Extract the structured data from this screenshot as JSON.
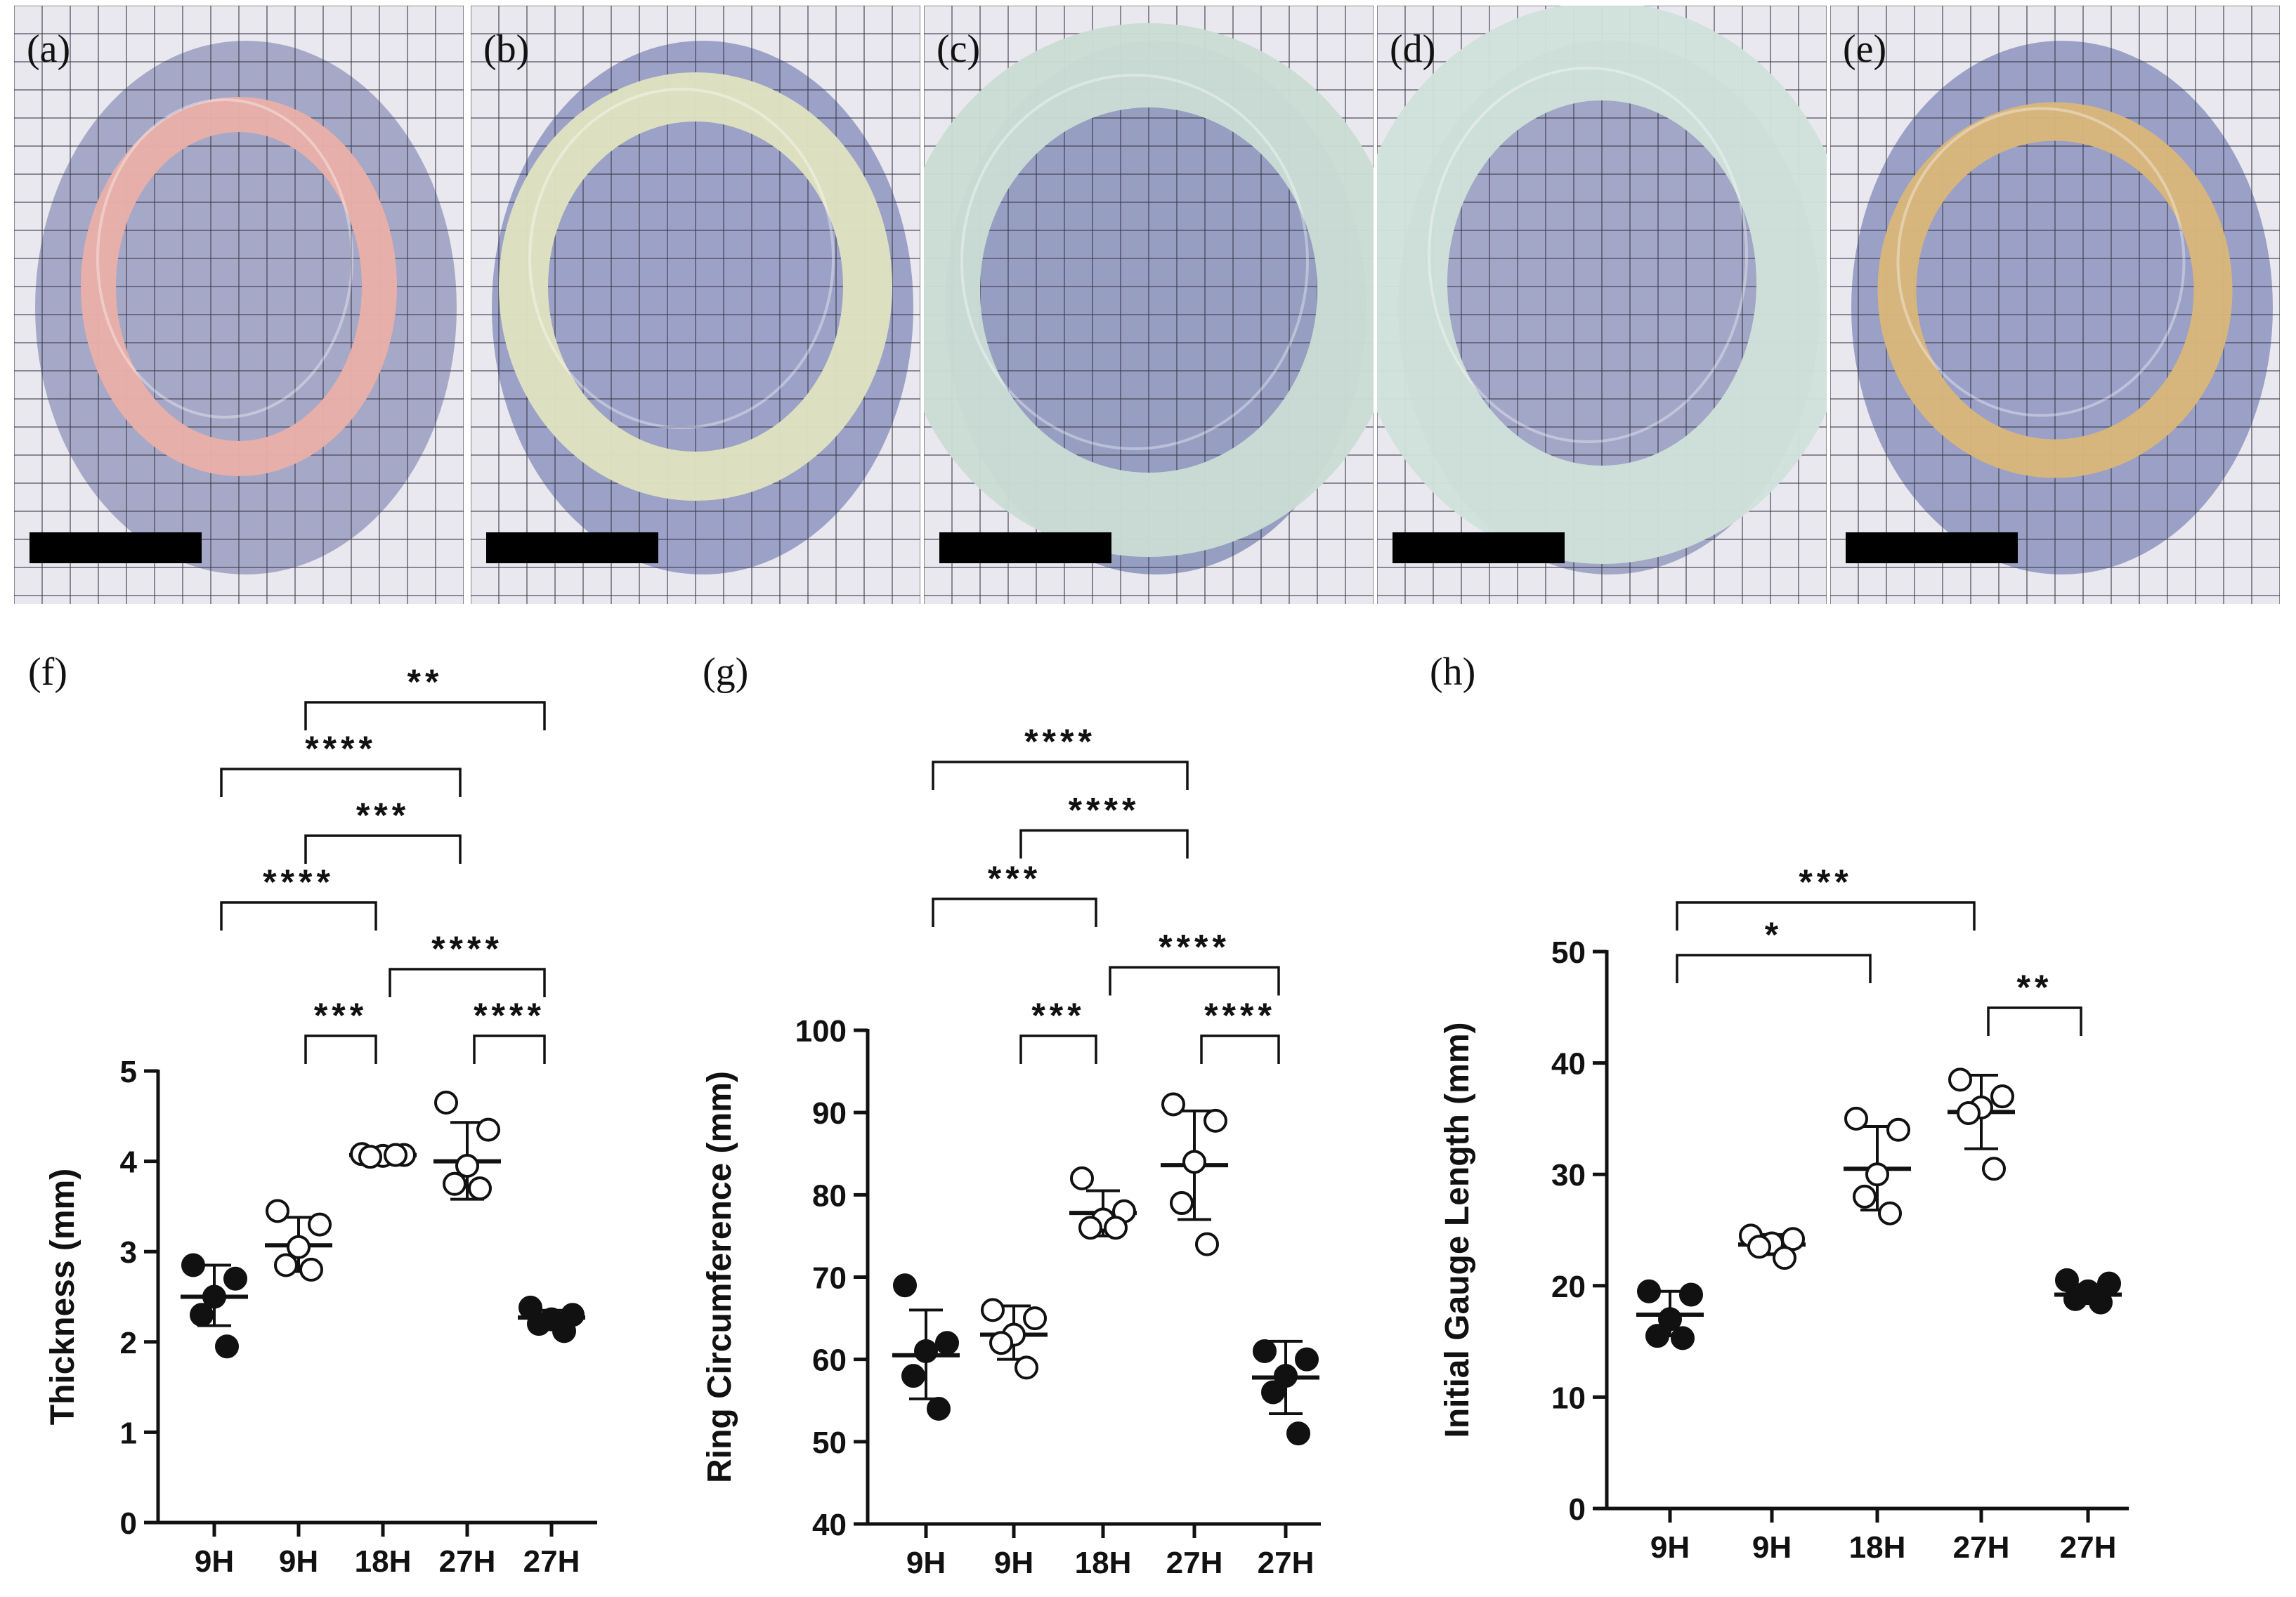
{
  "photos": [
    {
      "label": "(a)",
      "ring_color": "#e8b0a8",
      "bg_stain": "#6f73a8"
    },
    {
      "label": "(b)",
      "ring_color": "#dfe2c0",
      "bg_stain": "#5c66a8"
    },
    {
      "label": "(c)",
      "ring_color": "#c9dcd4",
      "bg_stain": "#52609e"
    },
    {
      "label": "(d)",
      "ring_color": "#cfe0da",
      "bg_stain": "#6870a8"
    },
    {
      "label": "(e)",
      "ring_color": "#d9b77c",
      "bg_stain": "#5a64a6"
    }
  ],
  "chart_data": [
    {
      "panel": "(f)",
      "type": "scatter",
      "ylabel": "Thickness (mm)",
      "categories": [
        "9H",
        "9H",
        "18H",
        "27H",
        "27H"
      ],
      "ylim": [
        0,
        5
      ],
      "yticks": [
        "0",
        "1",
        "2",
        "3",
        "4",
        "5"
      ],
      "groups": [
        {
          "category": "9H",
          "filled": true,
          "points": [
            2.85,
            2.7,
            2.5,
            2.3,
            1.95
          ],
          "mean": 2.5,
          "sd_low": 2.18,
          "sd_high": 2.85
        },
        {
          "category": "9H",
          "filled": false,
          "points": [
            3.45,
            3.3,
            3.05,
            2.85,
            2.8
          ],
          "mean": 3.07,
          "sd_low": 2.78,
          "sd_high": 3.38
        },
        {
          "category": "18H",
          "filled": false,
          "points": [
            4.08,
            4.07,
            4.06,
            4.05,
            4.07
          ],
          "mean": 4.07,
          "sd_low": 4.03,
          "sd_high": 4.1
        },
        {
          "category": "27H",
          "filled": false,
          "points": [
            4.65,
            4.35,
            3.95,
            3.75,
            3.7
          ],
          "mean": 4.0,
          "sd_low": 3.58,
          "sd_high": 4.43
        },
        {
          "category": "27H",
          "filled": true,
          "points": [
            2.38,
            2.3,
            2.25,
            2.2,
            2.12
          ],
          "mean": 2.27,
          "sd_low": 2.18,
          "sd_high": 2.35
        }
      ],
      "brackets": [
        {
          "from": 1,
          "to": 4,
          "label": "**"
        },
        {
          "from": 0,
          "to": 3,
          "label": "****"
        },
        {
          "from": 1,
          "to": 3,
          "label": "***"
        },
        {
          "from": 0,
          "to": 2,
          "label": "****"
        },
        {
          "from": 2,
          "to": 4,
          "label": "****"
        },
        {
          "from": 1,
          "to": 2,
          "label": "***"
        },
        {
          "from": 3,
          "to": 4,
          "label": "****"
        }
      ]
    },
    {
      "panel": "(g)",
      "type": "scatter",
      "ylabel": "Ring Circumference (mm)",
      "categories": [
        "9H",
        "9H",
        "18H",
        "27H",
        "27H"
      ],
      "ylim": [
        40,
        100
      ],
      "yticks": [
        "40",
        "50",
        "60",
        "70",
        "80",
        "90",
        "100"
      ],
      "groups": [
        {
          "category": "9H",
          "filled": true,
          "points": [
            69,
            62,
            61,
            58,
            54
          ],
          "mean": 60.5,
          "sd_low": 55.2,
          "sd_high": 66
        },
        {
          "category": "9H",
          "filled": false,
          "points": [
            66,
            65,
            63,
            62,
            59
          ],
          "mean": 63,
          "sd_low": 60,
          "sd_high": 66.5
        },
        {
          "category": "18H",
          "filled": false,
          "points": [
            82,
            78,
            77,
            76,
            76
          ],
          "mean": 77.8,
          "sd_low": 75,
          "sd_high": 80.5
        },
        {
          "category": "27H",
          "filled": false,
          "points": [
            91,
            89,
            84,
            79,
            74
          ],
          "mean": 83.6,
          "sd_low": 77,
          "sd_high": 90.2
        },
        {
          "category": "27H",
          "filled": true,
          "points": [
            61,
            60,
            58,
            56,
            51
          ],
          "mean": 57.8,
          "sd_low": 53.4,
          "sd_high": 62.2
        }
      ],
      "brackets": [
        {
          "from": 0,
          "to": 3,
          "label": "****"
        },
        {
          "from": 1,
          "to": 3,
          "label": "****"
        },
        {
          "from": 0,
          "to": 2,
          "label": "***"
        },
        {
          "from": 2,
          "to": 4,
          "label": "****"
        },
        {
          "from": 1,
          "to": 2,
          "label": "***"
        },
        {
          "from": 3,
          "to": 4,
          "label": "****"
        }
      ]
    },
    {
      "panel": "(h)",
      "type": "scatter",
      "ylabel": "Initial Gauge Length (mm)",
      "categories": [
        "9H",
        "9H",
        "18H",
        "27H",
        "27H"
      ],
      "ylim": [
        0,
        50
      ],
      "yticks": [
        "0",
        "10",
        "20",
        "30",
        "40",
        "50"
      ],
      "groups": [
        {
          "category": "9H",
          "filled": true,
          "points": [
            19.5,
            19.2,
            17,
            15.5,
            15.3
          ],
          "mean": 17.4,
          "sd_low": 15.5,
          "sd_high": 19.5
        },
        {
          "category": "9H",
          "filled": false,
          "points": [
            24.5,
            24.2,
            23.8,
            23.5,
            22.5
          ],
          "mean": 23.7,
          "sd_low": 22.8,
          "sd_high": 24.6
        },
        {
          "category": "18H",
          "filled": false,
          "points": [
            35,
            34,
            30,
            28,
            26.5
          ],
          "mean": 30.5,
          "sd_low": 26.8,
          "sd_high": 34.3
        },
        {
          "category": "27H",
          "filled": false,
          "points": [
            38.5,
            37,
            36,
            35.5,
            30.5
          ],
          "mean": 35.6,
          "sd_low": 32.3,
          "sd_high": 38.9
        },
        {
          "category": "27H",
          "filled": true,
          "points": [
            20.5,
            20.2,
            19.5,
            18.8,
            18.5
          ],
          "mean": 19.2,
          "sd_low": 18.4,
          "sd_high": 20.1
        }
      ],
      "brackets": [
        {
          "from": 0,
          "to": 3,
          "label": "***"
        },
        {
          "from": 0,
          "to": 2,
          "label": "*"
        },
        {
          "from": 3,
          "to": 4,
          "label": "**"
        }
      ]
    }
  ]
}
